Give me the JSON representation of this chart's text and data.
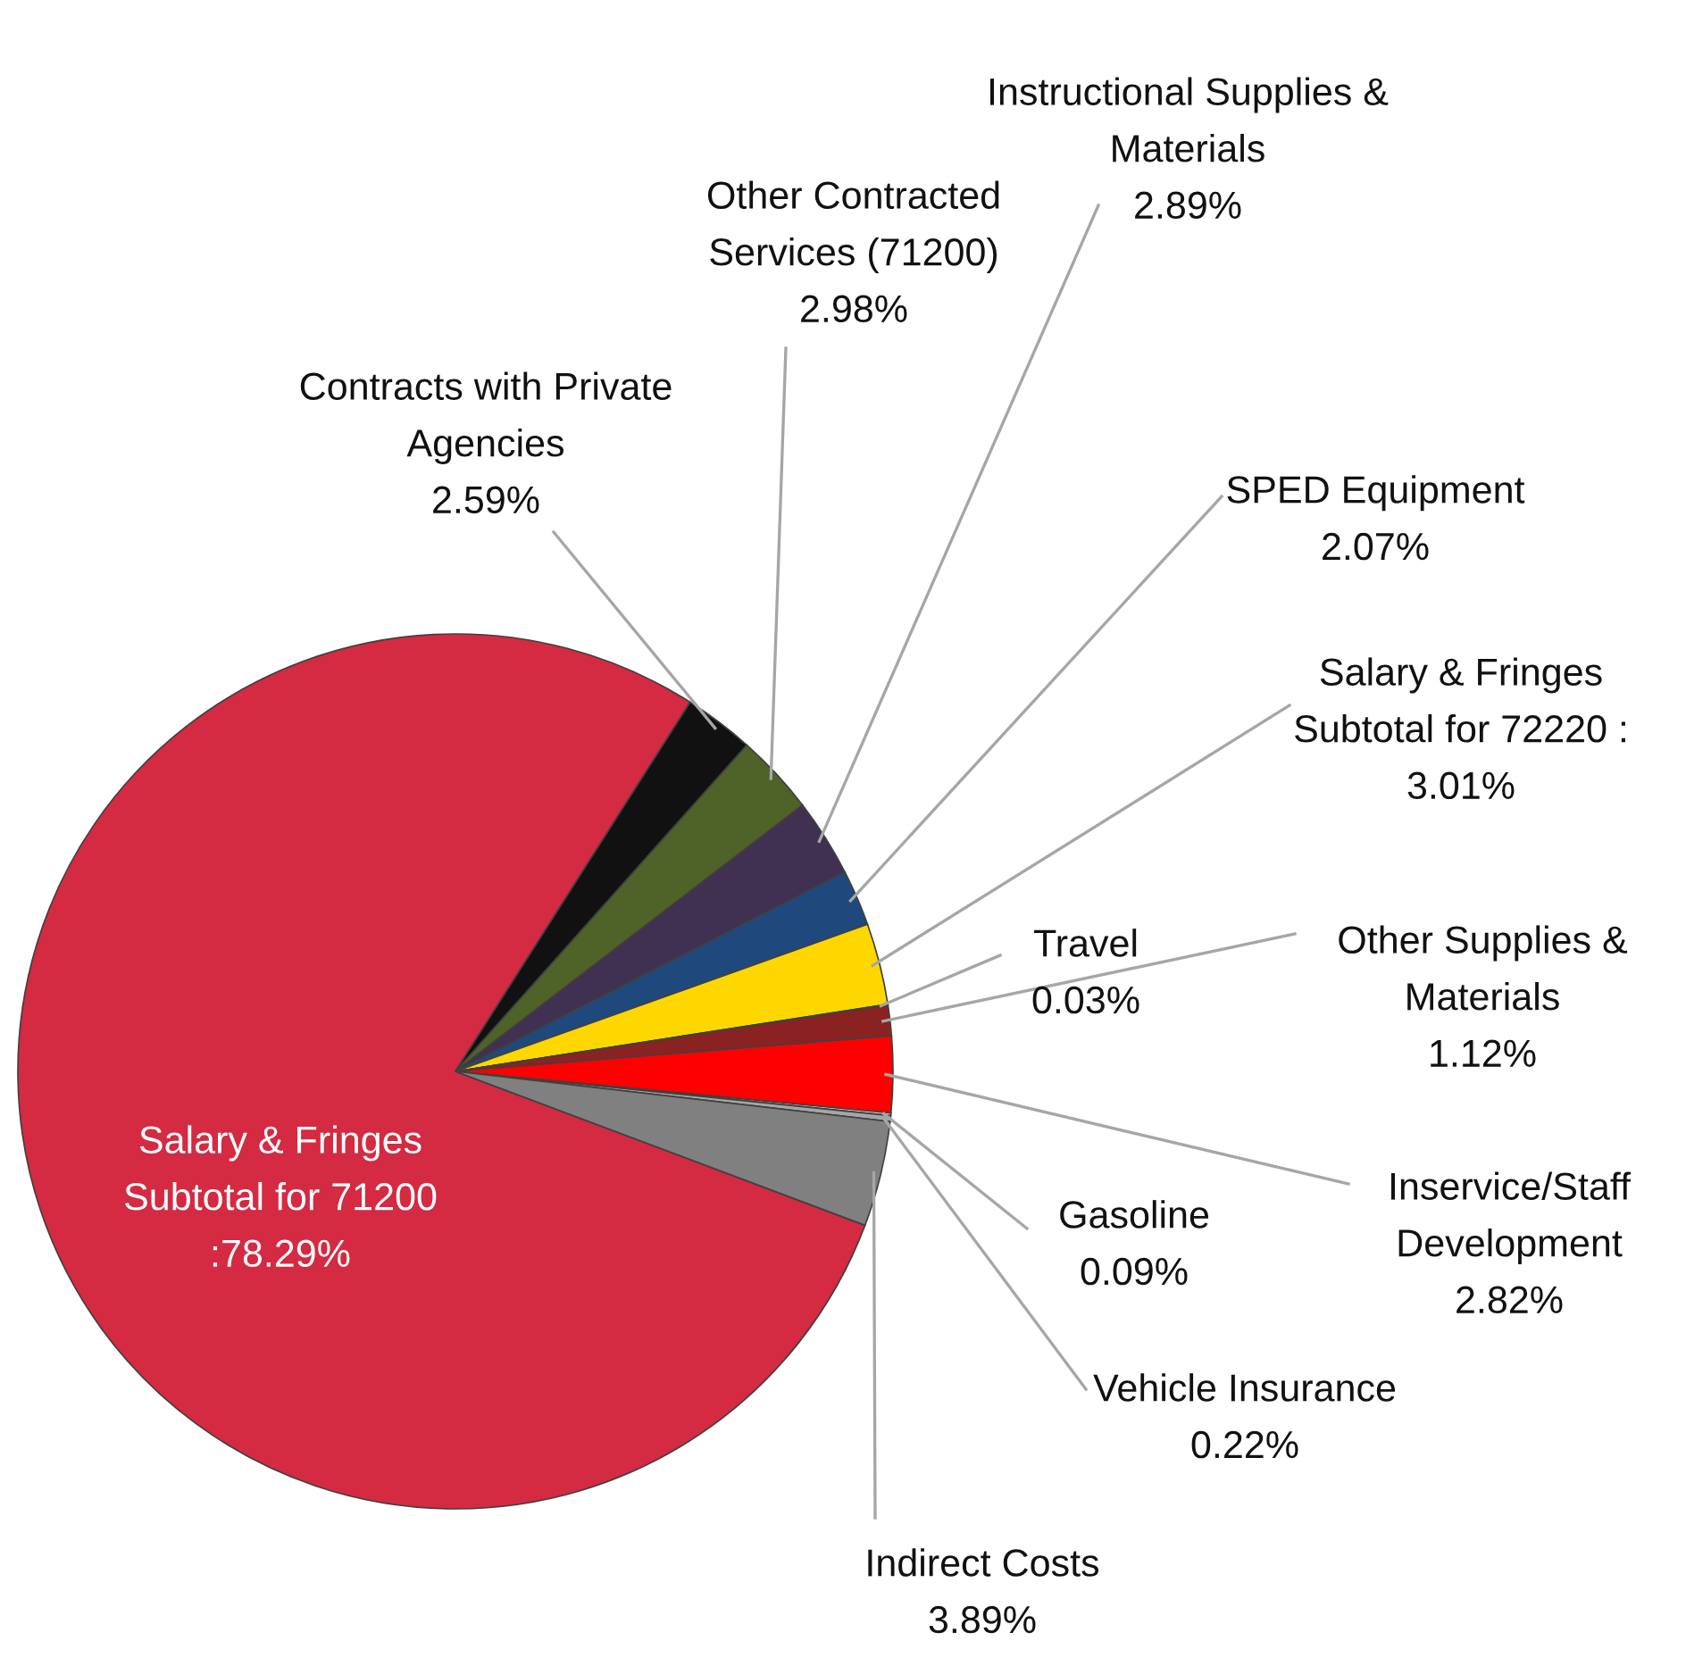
{
  "chart_data": {
    "type": "pie",
    "categories": [
      "Salary & Fringes Subtotal for 71200",
      "Contracts with Private Agencies",
      "Other Contracted Services (71200)",
      "Instructional Supplies & Materials",
      "SPED Equipment",
      "Salary & Fringes Subtotal for 72220",
      "Travel",
      "Other Supplies & Materials",
      "Inservice/Staff Development",
      "Gasoline",
      "Vehicle Insurance",
      "Indirect Costs"
    ],
    "values": [
      78.29,
      2.59,
      2.98,
      2.89,
      2.07,
      3.01,
      0.03,
      1.12,
      2.82,
      0.09,
      0.22,
      3.89
    ],
    "value_labels": [
      ":78.29%",
      "2.59%",
      "2.98%",
      "2.89%",
      "2.07%",
      ": 3.01%",
      "0.03%",
      "1.12%",
      "2.82%",
      "0.09%",
      "0.22%",
      "3.89%"
    ],
    "colors": [
      "#d42a42",
      "#111111",
      "#4f6228",
      "#403152",
      "#1f497d",
      "#ffd700",
      "#c0504d",
      "#8b2222",
      "#ff0000",
      "#d9d9d9",
      "#a6a6a6",
      "#808080"
    ],
    "legend": false
  }
}
